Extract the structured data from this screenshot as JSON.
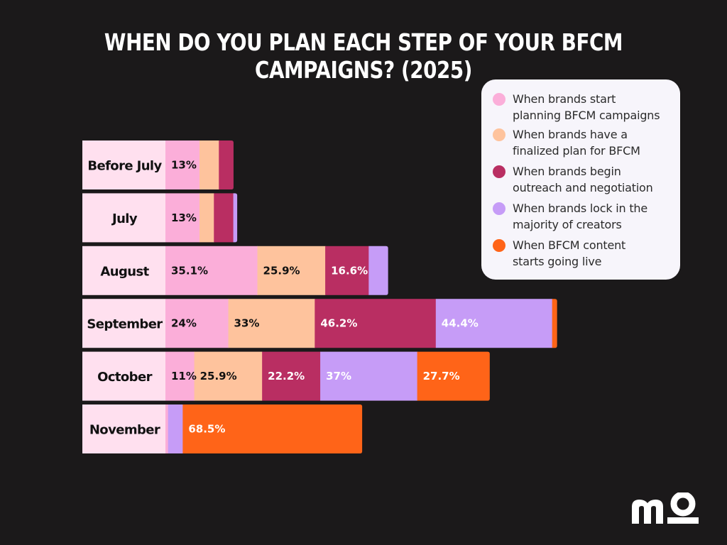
{
  "title": "WHEN DO YOU PLAN EACH STEP OF YOUR BFCM CAMPAIGNS? (2025)",
  "colors": {
    "background": "#1b191a",
    "category_box": "#ffe0ef",
    "series": [
      "#fbaed9",
      "#fec39d",
      "#b92e62",
      "#c69cf7",
      "#ff6418"
    ]
  },
  "chart_data": {
    "type": "bar",
    "orientation": "horizontal",
    "stacked": true,
    "title": "WHEN DO YOU PLAN EACH STEP OF YOUR BFCM CAMPAIGNS? (2025)",
    "xlabel": "",
    "ylabel": "",
    "legend_position": "top-right",
    "grid": false,
    "categories": [
      "Before July",
      "July",
      "August",
      "September",
      "October",
      "November"
    ],
    "series": [
      {
        "name": "When brands start planning BFCM campaigns",
        "values": [
          13,
          13,
          35.1,
          24,
          11,
          1
        ]
      },
      {
        "name": "When brands have a finalized plan for BFCM",
        "values": [
          7.4,
          5.5,
          25.9,
          33,
          25.9,
          0
        ]
      },
      {
        "name": "When brands begin outreach and negotiation",
        "values": [
          5.6,
          7.4,
          16.6,
          46.2,
          22.2,
          0
        ]
      },
      {
        "name": "When brands lock in the majority of creators",
        "values": [
          0,
          1.5,
          7.4,
          44.4,
          37,
          5.6
        ]
      },
      {
        "name": "When BFCM content starts going live",
        "values": [
          0,
          0,
          0,
          1.9,
          27.7,
          68.5
        ]
      }
    ],
    "data_labels": [
      [
        "13%",
        "",
        "",
        "",
        ""
      ],
      [
        "13%",
        "",
        "",
        "",
        ""
      ],
      [
        "35.1%",
        "25.9%",
        "16.6%",
        "",
        ""
      ],
      [
        "24%",
        "33%",
        "46.2%",
        "44.4%",
        ""
      ],
      [
        "11%",
        "25.9%",
        "22.2%",
        "37%",
        "27.7%"
      ],
      [
        "",
        "",
        "",
        "",
        "68.5%"
      ]
    ]
  },
  "legend": [
    {
      "label_line1": "When brands start",
      "label_line2": "planning BFCM campaigns",
      "color": "#fbaed9"
    },
    {
      "label_line1": "When brands have a",
      "label_line2": "finalized plan for BFCM",
      "color": "#fec39d"
    },
    {
      "label_line1": "When brands begin",
      "label_line2": "outreach and negotiation",
      "color": "#b92e62"
    },
    {
      "label_line1": "When brands lock in the",
      "label_line2": "majority of creators",
      "color": "#c69cf7"
    },
    {
      "label_line1": "When BFCM content",
      "label_line2": "starts going live",
      "color": "#ff6418"
    }
  ],
  "logo": {
    "text": "mo"
  }
}
